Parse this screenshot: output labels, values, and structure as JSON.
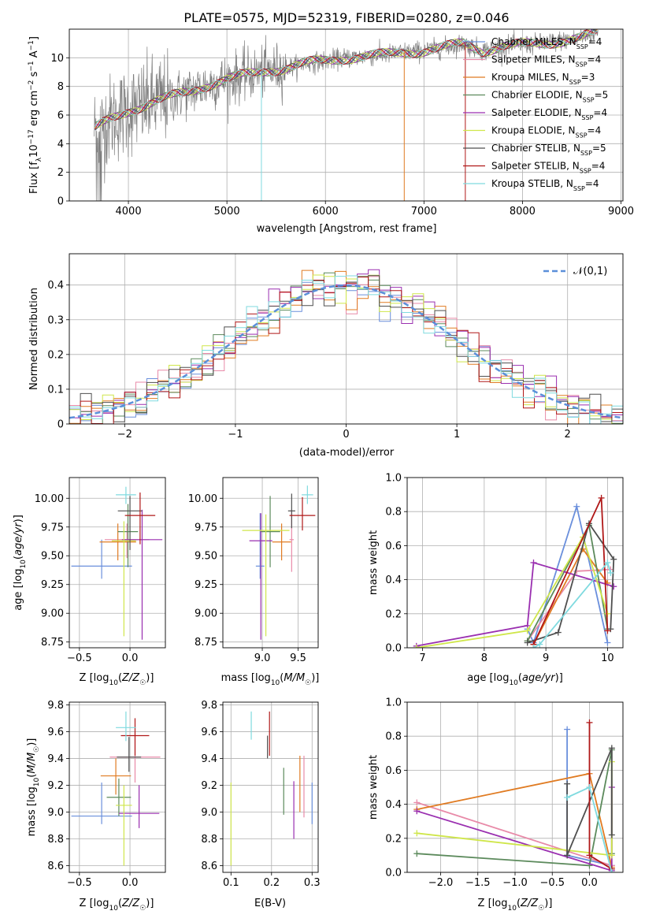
{
  "title": "PLATE=0575, MJD=52319, FIBERID=0280, z=0.046",
  "colors": {
    "chab_miles": "#6a8fdc",
    "salp_miles": "#e88aa8",
    "krou_miles": "#e07b22",
    "chab_elodie": "#5c8a5c",
    "salp_elodie": "#9a2fb0",
    "krou_elodie": "#cfe64a",
    "chab_stelib": "#4f4f4f",
    "salp_stelib": "#b01818",
    "krou_stelib": "#7fdadf",
    "data": "#7f7f7f",
    "normal": "#5b8fd9"
  },
  "chart_data": [
    {
      "id": "spectrum",
      "type": "line",
      "title": "PLATE=0575, MJD=52319, FIBERID=0280, z=0.046",
      "xlabel": "wavelength [Angstrom, rest frame]",
      "ylabel": "Flux [f_λ 10^-17 erg cm^-2 s^-1 A^-1]",
      "xlim": [
        3400,
        9020
      ],
      "ylim": [
        0,
        12
      ],
      "xticks": [
        4000,
        5000,
        6000,
        7000,
        8000,
        9000
      ],
      "yticks": [
        0,
        2,
        4,
        6,
        8,
        10
      ],
      "continuum": [
        [
          3650,
          5.0
        ],
        [
          3800,
          5.6
        ],
        [
          4000,
          6.3
        ],
        [
          4200,
          6.8
        ],
        [
          4400,
          7.2
        ],
        [
          4600,
          7.6
        ],
        [
          4800,
          8.1
        ],
        [
          5000,
          8.5
        ],
        [
          5200,
          8.8
        ],
        [
          5400,
          9.1
        ],
        [
          5600,
          9.3
        ],
        [
          5800,
          9.6
        ],
        [
          6000,
          9.8
        ],
        [
          6200,
          10.0
        ],
        [
          6400,
          10.1
        ],
        [
          6600,
          10.2
        ],
        [
          6800,
          10.4
        ],
        [
          7000,
          10.5
        ],
        [
          7200,
          10.7
        ],
        [
          7400,
          11.0
        ],
        [
          7600,
          10.5
        ],
        [
          7800,
          10.8
        ],
        [
          8000,
          10.9
        ],
        [
          8200,
          11.0
        ],
        [
          8400,
          11.2
        ],
        [
          8600,
          11.4
        ],
        [
          8750,
          11.8
        ]
      ],
      "legend_position": "top-right",
      "series": [
        {
          "name": "Chabrier MILES",
          "nssp": "4"
        },
        {
          "name": "Salpeter MILES",
          "nssp": "4"
        },
        {
          "name": "Kroupa MILES",
          "nssp": "3"
        },
        {
          "name": "Chabrier ELODIE",
          "nssp": "5"
        },
        {
          "name": "Salpeter ELODIE",
          "nssp": "4"
        },
        {
          "name": "Kroupa ELODIE",
          "nssp": "4"
        },
        {
          "name": "Chabrier STELIB",
          "nssp": "5"
        },
        {
          "name": "Salpeter STELIB",
          "nssp": "4"
        },
        {
          "name": "Kroupa STELIB",
          "nssp": "4"
        }
      ]
    },
    {
      "id": "residuals",
      "type": "bar",
      "xlabel": "(data-model)/error",
      "ylabel": "Normed distribution",
      "xlim": [
        -2.5,
        2.5
      ],
      "ylim": [
        0,
        0.49
      ],
      "xticks": [
        -2,
        -1,
        0,
        1,
        2
      ],
      "yticks": [
        0.0,
        0.1,
        0.2,
        0.3,
        0.4
      ],
      "bin_width": 0.1,
      "legend": "𝒩(0,1)",
      "grid": true
    },
    {
      "id": "age_vs_z",
      "type": "scatter",
      "xlabel": "Z [log10(Z/Z☉)]",
      "ylabel": "age [log10(age/yr)]",
      "xlim": [
        -0.6,
        0.35
      ],
      "ylim": [
        8.7,
        10.18
      ],
      "xticks": [
        -0.5,
        0.0
      ],
      "yticks": [
        8.75,
        9.0,
        9.25,
        9.5,
        9.75,
        10.0
      ],
      "xtick_labels": [
        "−0.5",
        "0.0"
      ],
      "ytick_labels": [
        "8.75",
        "9.00",
        "9.25",
        "9.50",
        "9.75",
        "10.00"
      ],
      "points": [
        {
          "x": -0.28,
          "y": 9.41,
          "xerr": 0.3,
          "ylo": 9.3,
          "yhi": 9.64,
          "c": "chab_miles"
        },
        {
          "x": -0.03,
          "y": 9.64,
          "xerr": 0.22,
          "ylo": 9.48,
          "yhi": 9.78,
          "c": "salp_miles"
        },
        {
          "x": -0.12,
          "y": 9.62,
          "xerr": 0.18,
          "ylo": 9.46,
          "yhi": 9.78,
          "c": "krou_miles"
        },
        {
          "x": -0.02,
          "y": 9.71,
          "xerr": 0.1,
          "ylo": 9.4,
          "yhi": 9.95,
          "c": "chab_elodie"
        },
        {
          "x": 0.12,
          "y": 9.64,
          "xerr": 0.2,
          "ylo": 8.77,
          "yhi": 9.9,
          "c": "salp_elodie"
        },
        {
          "x": -0.06,
          "y": 9.63,
          "xerr": 0.12,
          "ylo": 8.8,
          "yhi": 9.8,
          "c": "krou_elodie"
        },
        {
          "x": 0.0,
          "y": 9.89,
          "xerr": 0.12,
          "ylo": 9.55,
          "yhi": 10.02,
          "c": "chab_stelib"
        },
        {
          "x": 0.1,
          "y": 9.85,
          "xerr": 0.15,
          "ylo": 9.6,
          "yhi": 10.05,
          "c": "salp_stelib"
        },
        {
          "x": -0.04,
          "y": 10.03,
          "xerr": 0.1,
          "ylo": 9.95,
          "yhi": 10.1,
          "c": "krou_stelib"
        }
      ]
    },
    {
      "id": "age_vs_mass",
      "type": "scatter",
      "xlabel": "mass [log10(M/M☉)]",
      "ylabel": "",
      "xlim": [
        8.45,
        9.78
      ],
      "ylim": [
        8.7,
        10.18
      ],
      "xticks": [
        9.0,
        9.5
      ],
      "yticks": [
        8.75,
        9.0,
        9.25,
        9.5,
        9.75,
        10.0
      ],
      "xtick_labels": [
        "9.0",
        "9.5"
      ],
      "ytick_labels": [
        "8.75",
        "9.00",
        "9.25",
        "9.50",
        "9.75",
        "10.00"
      ],
      "points": [
        {
          "x": 8.97,
          "y": 9.41,
          "xerr": 0.06,
          "ylo": 9.3,
          "yhi": 9.87,
          "c": "chab_miles"
        },
        {
          "x": 9.41,
          "y": 9.64,
          "xerr": 0.03,
          "ylo": 9.36,
          "yhi": 9.9,
          "c": "salp_miles"
        },
        {
          "x": 9.27,
          "y": 9.62,
          "xerr": 0.13,
          "ylo": 9.46,
          "yhi": 9.78,
          "c": "krou_miles"
        },
        {
          "x": 9.11,
          "y": 9.71,
          "xerr": 0.14,
          "ylo": 9.4,
          "yhi": 10.02,
          "c": "chab_elodie"
        },
        {
          "x": 8.98,
          "y": 9.63,
          "xerr": 0.16,
          "ylo": 8.77,
          "yhi": 9.87,
          "c": "salp_elodie"
        },
        {
          "x": 9.05,
          "y": 9.72,
          "xerr": 0.33,
          "ylo": 8.8,
          "yhi": 9.86,
          "c": "krou_elodie"
        },
        {
          "x": 9.41,
          "y": 9.89,
          "xerr": 0.05,
          "ylo": 9.74,
          "yhi": 10.04,
          "c": "chab_stelib"
        },
        {
          "x": 9.56,
          "y": 9.85,
          "xerr": 0.18,
          "ylo": 9.72,
          "yhi": 10.01,
          "c": "salp_stelib"
        },
        {
          "x": 9.63,
          "y": 10.03,
          "xerr": 0.08,
          "ylo": 9.95,
          "yhi": 10.11,
          "c": "krou_stelib"
        }
      ]
    },
    {
      "id": "weight_vs_age",
      "type": "line",
      "xlabel": "age [log10(age/yr)]",
      "ylabel": "mass weight",
      "xlim": [
        6.75,
        10.25
      ],
      "ylim": [
        0,
        1.0
      ],
      "xticks": [
        7,
        8,
        9,
        10
      ],
      "yticks": [
        0.0,
        0.2,
        0.4,
        0.6,
        0.8,
        1.0
      ],
      "xtick_labels": [
        "7",
        "8",
        "9",
        "10"
      ],
      "ytick_labels": [
        "0.0",
        "0.2",
        "0.4",
        "0.6",
        "0.8",
        "1.0"
      ],
      "series": [
        {
          "c": "chab_miles",
          "points": [
            [
              8.7,
              0.11
            ],
            [
              8.8,
              0.03
            ],
            [
              9.5,
              0.83
            ],
            [
              10.0,
              0.03
            ]
          ]
        },
        {
          "c": "salp_miles",
          "points": [
            [
              8.7,
              0.04
            ],
            [
              9.5,
              0.45
            ],
            [
              10.05,
              0.46
            ]
          ]
        },
        {
          "c": "krou_miles",
          "points": [
            [
              8.8,
              0.02
            ],
            [
              9.6,
              0.58
            ],
            [
              10.0,
              0.38
            ]
          ]
        },
        {
          "c": "chab_elodie",
          "points": [
            [
              8.7,
              0.04
            ],
            [
              9.7,
              0.72
            ],
            [
              10.0,
              0.11
            ]
          ]
        },
        {
          "c": "salp_elodie",
          "points": [
            [
              6.9,
              0.01
            ],
            [
              8.7,
              0.13
            ],
            [
              8.8,
              0.5
            ],
            [
              10.1,
              0.36
            ]
          ]
        },
        {
          "c": "krou_elodie",
          "points": [
            [
              6.9,
              0.0
            ],
            [
              8.7,
              0.1
            ],
            [
              9.6,
              0.65
            ],
            [
              10.0,
              0.2
            ]
          ]
        },
        {
          "c": "chab_stelib",
          "points": [
            [
              8.7,
              0.03
            ],
            [
              9.2,
              0.09
            ],
            [
              9.7,
              0.73
            ],
            [
              10.1,
              0.52
            ],
            [
              10.05,
              0.11
            ]
          ]
        },
        {
          "c": "salp_stelib",
          "points": [
            [
              8.8,
              0.02
            ],
            [
              9.9,
              0.88
            ],
            [
              10.0,
              0.1
            ]
          ]
        },
        {
          "c": "krou_stelib",
          "points": [
            [
              8.8,
              0.0
            ],
            [
              8.9,
              0.02
            ],
            [
              10.0,
              0.5
            ],
            [
              10.05,
              0.44
            ]
          ]
        }
      ]
    },
    {
      "id": "mass_vs_z",
      "type": "scatter",
      "xlabel": "Z [log10(Z/Z☉)]",
      "ylabel": "mass [log10(M/M☉)]",
      "xlim": [
        -0.6,
        0.35
      ],
      "ylim": [
        8.55,
        9.82
      ],
      "xticks": [
        -0.5,
        0.0
      ],
      "yticks": [
        8.6,
        8.8,
        9.0,
        9.2,
        9.4,
        9.6,
        9.8
      ],
      "xtick_labels": [
        "−0.5",
        "0.0"
      ],
      "ytick_labels": [
        "8.6",
        "8.8",
        "9.0",
        "9.2",
        "9.4",
        "9.6",
        "9.8"
      ],
      "points": [
        {
          "x": -0.28,
          "y": 8.97,
          "xerr": 0.3,
          "ylo": 8.91,
          "yhi": 9.22,
          "c": "chab_miles"
        },
        {
          "x": 0.05,
          "y": 9.41,
          "xerr": 0.25,
          "ylo": 9.22,
          "yhi": 9.6,
          "c": "salp_miles"
        },
        {
          "x": -0.14,
          "y": 9.27,
          "xerr": 0.15,
          "ylo": 9.13,
          "yhi": 9.4,
          "c": "krou_miles"
        },
        {
          "x": -0.11,
          "y": 9.11,
          "xerr": 0.12,
          "ylo": 8.97,
          "yhi": 9.25,
          "c": "chab_elodie"
        },
        {
          "x": 0.09,
          "y": 8.99,
          "xerr": 0.2,
          "ylo": 8.88,
          "yhi": 9.2,
          "c": "salp_elodie"
        },
        {
          "x": -0.06,
          "y": 9.05,
          "xerr": 0.08,
          "ylo": 8.6,
          "yhi": 9.2,
          "c": "krou_elodie"
        },
        {
          "x": -0.01,
          "y": 9.41,
          "xerr": 0.12,
          "ylo": 9.3,
          "yhi": 9.56,
          "c": "chab_stelib"
        },
        {
          "x": 0.05,
          "y": 9.57,
          "xerr": 0.14,
          "ylo": 9.42,
          "yhi": 9.7,
          "c": "salp_stelib"
        },
        {
          "x": -0.04,
          "y": 9.63,
          "xerr": 0.1,
          "ylo": 9.53,
          "yhi": 9.75,
          "c": "krou_stelib"
        }
      ]
    },
    {
      "id": "mass_vs_ebv",
      "type": "scatter",
      "xlabel": "E(B-V)",
      "ylabel": "",
      "xlim": [
        0.08,
        0.315
      ],
      "ylim": [
        8.55,
        9.82
      ],
      "xticks": [
        0.1,
        0.2,
        0.3
      ],
      "yticks": [
        8.6,
        8.8,
        9.0,
        9.2,
        9.4,
        9.6,
        9.8
      ],
      "xtick_labels": [
        "0.1",
        "0.2",
        "0.3"
      ],
      "ytick_labels": [
        "8.6",
        "8.8",
        "9.0",
        "9.2",
        "9.4",
        "9.6",
        "9.8"
      ],
      "points": [
        {
          "x": 0.3,
          "ylo": 8.91,
          "yhi": 9.22,
          "c": "chab_miles"
        },
        {
          "x": 0.28,
          "ylo": 8.96,
          "yhi": 9.42,
          "c": "salp_miles"
        },
        {
          "x": 0.27,
          "ylo": 9.0,
          "yhi": 9.42,
          "c": "krou_miles"
        },
        {
          "x": 0.23,
          "ylo": 8.98,
          "yhi": 9.33,
          "c": "chab_elodie"
        },
        {
          "x": 0.255,
          "ylo": 8.8,
          "yhi": 9.23,
          "c": "salp_elodie"
        },
        {
          "x": 0.1,
          "ylo": 8.6,
          "yhi": 9.22,
          "c": "krou_elodie"
        },
        {
          "x": 0.19,
          "ylo": 9.4,
          "yhi": 9.57,
          "c": "chab_stelib"
        },
        {
          "x": 0.195,
          "ylo": 9.42,
          "yhi": 9.75,
          "c": "salp_stelib"
        },
        {
          "x": 0.15,
          "ylo": 9.54,
          "yhi": 9.75,
          "c": "krou_stelib"
        }
      ]
    },
    {
      "id": "weight_vs_z",
      "type": "line",
      "xlabel": "Z [log10(Z/Z☉)]",
      "ylabel": "mass weight",
      "xlim": [
        -2.45,
        0.45
      ],
      "ylim": [
        0,
        1.0
      ],
      "xticks": [
        -2.0,
        -1.5,
        -1.0,
        -0.5,
        0.0
      ],
      "yticks": [
        0.0,
        0.2,
        0.4,
        0.6,
        0.8,
        1.0
      ],
      "xtick_labels": [
        "−2.0",
        "−1.5",
        "−1.0",
        "−0.5",
        "0.0"
      ],
      "ytick_labels": [
        "0.0",
        "0.2",
        "0.4",
        "0.6",
        "0.8",
        "1.0"
      ],
      "series": [
        {
          "c": "chab_miles",
          "points": [
            [
              -0.3,
              0.84
            ],
            [
              -0.3,
              0.1
            ],
            [
              0.3,
              0.04
            ]
          ]
        },
        {
          "c": "salp_miles",
          "points": [
            [
              -2.32,
              0.41
            ],
            [
              0.3,
              0.04
            ]
          ]
        },
        {
          "c": "krou_miles",
          "points": [
            [
              -2.32,
              0.37
            ],
            [
              0.0,
              0.58
            ],
            [
              0.3,
              0.03
            ]
          ]
        },
        {
          "c": "chab_elodie",
          "points": [
            [
              -2.32,
              0.11
            ],
            [
              0.0,
              0.04
            ],
            [
              0.3,
              0.72
            ],
            [
              0.3,
              0.11
            ]
          ]
        },
        {
          "c": "salp_elodie",
          "points": [
            [
              -2.32,
              0.36
            ],
            [
              0.3,
              0.01
            ],
            [
              0.3,
              0.5
            ]
          ]
        },
        {
          "c": "krou_elodie",
          "points": [
            [
              -2.32,
              0.23
            ],
            [
              0.3,
              0.1
            ],
            [
              0.3,
              0.65
            ]
          ]
        },
        {
          "c": "chab_stelib",
          "points": [
            [
              -0.3,
              0.52
            ],
            [
              -0.3,
              0.1
            ],
            [
              0.3,
              0.73
            ],
            [
              0.3,
              0.22
            ]
          ]
        },
        {
          "c": "salp_stelib",
          "points": [
            [
              0.0,
              0.88
            ],
            [
              0.0,
              0.1
            ],
            [
              0.3,
              0.02
            ]
          ]
        },
        {
          "c": "krou_stelib",
          "points": [
            [
              -0.3,
              0.44
            ],
            [
              0.0,
              0.5
            ],
            [
              0.3,
              0.0
            ]
          ]
        }
      ]
    }
  ]
}
